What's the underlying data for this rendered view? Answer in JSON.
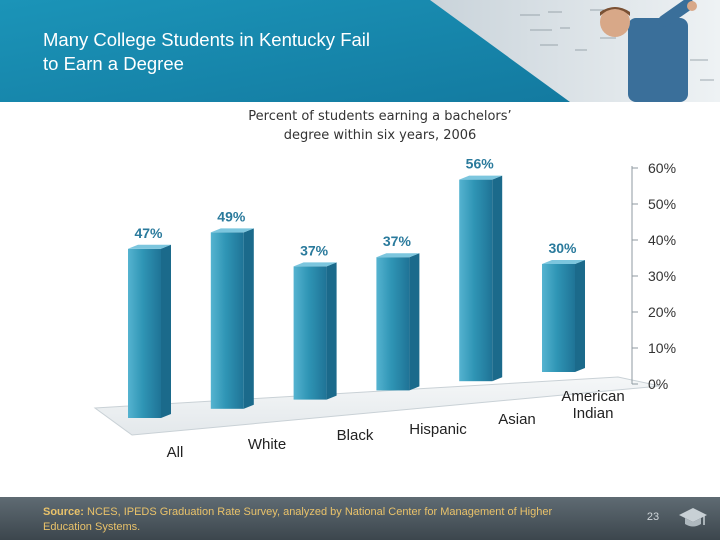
{
  "slide": {
    "title_line1": "Many College Students in Kentucky Fail",
    "title_line2": "to Earn a Degree",
    "footer_source_label": "Source:",
    "footer_source_text": "NCES, IPEDS Graduation Rate Survey, analyzed by National Center for Management of Higher Education Systems.",
    "page_number": "23",
    "header_image_icon": "teacher-at-chalkboard-photo",
    "footer_icon": "graduation-cap-icon",
    "colors": {
      "header": "#1a8fb3",
      "bar": "#2a8fb0",
      "label": "#2a7a9c",
      "footer": "#4a555c",
      "footer_text": "#e9c26a"
    }
  },
  "chart_data": {
    "type": "bar",
    "title_line1": "Percent of students earning a bachelors’",
    "title_line2": "degree within six years, 2006",
    "categories": [
      "All",
      "White",
      "Black",
      "Hispanic",
      "Asian",
      "American Indian"
    ],
    "category_lines": [
      [
        "All"
      ],
      [
        "White"
      ],
      [
        "Black"
      ],
      [
        "Hispanic"
      ],
      [
        "Asian"
      ],
      [
        "American",
        "Indian"
      ]
    ],
    "values": [
      47,
      49,
      37,
      37,
      56,
      30
    ],
    "value_labels": [
      "47%",
      "49%",
      "37%",
      "37%",
      "56%",
      "30%"
    ],
    "ylim": [
      0,
      60
    ],
    "yticks": [
      0,
      10,
      20,
      30,
      40,
      50,
      60
    ],
    "ytick_labels": [
      "0%",
      "10%",
      "20%",
      "30%",
      "40%",
      "50%",
      "60%"
    ],
    "xlabel": "",
    "ylabel": "",
    "grid": false,
    "style": "3d-column"
  }
}
